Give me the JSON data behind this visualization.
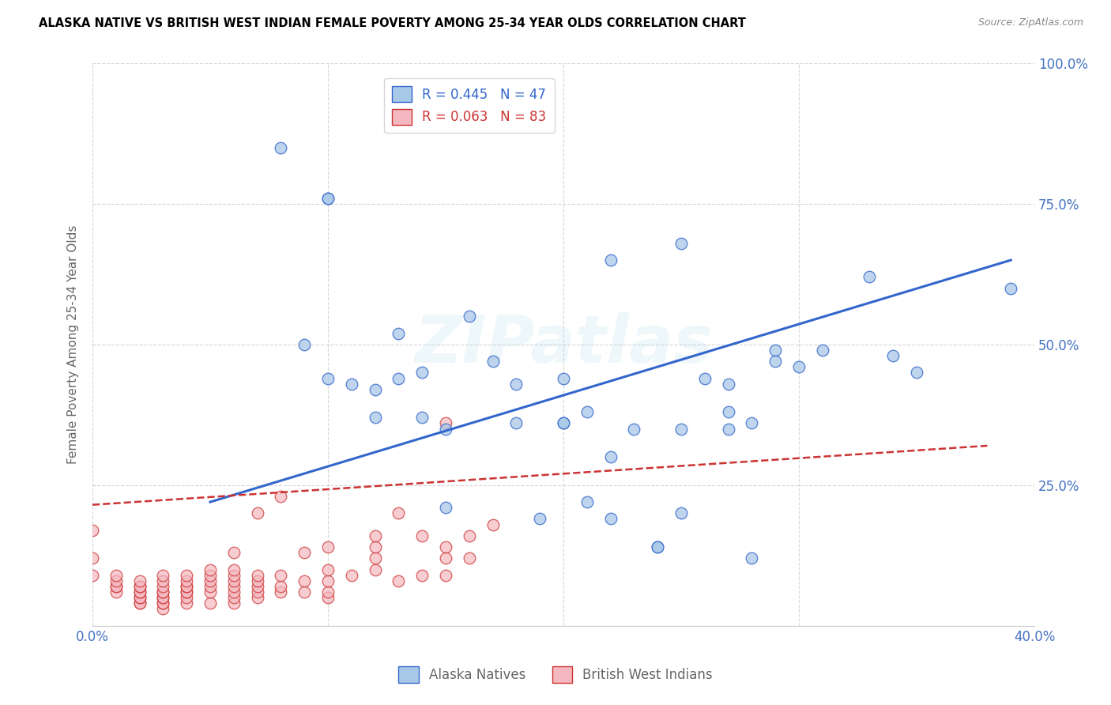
{
  "title": "ALASKA NATIVE VS BRITISH WEST INDIAN FEMALE POVERTY AMONG 25-34 YEAR OLDS CORRELATION CHART",
  "source": "Source: ZipAtlas.com",
  "ylabel": "Female Poverty Among 25-34 Year Olds",
  "xlim": [
    0.0,
    0.4
  ],
  "ylim": [
    0.0,
    1.0
  ],
  "xticks": [
    0.0,
    0.1,
    0.2,
    0.3,
    0.4
  ],
  "xticklabels": [
    "0.0%",
    "",
    "",
    "",
    "40.0%"
  ],
  "yticks": [
    0.0,
    0.25,
    0.5,
    0.75,
    1.0
  ],
  "yticklabels": [
    "",
    "25.0%",
    "50.0%",
    "75.0%",
    "100.0%"
  ],
  "alaska_R": 0.445,
  "alaska_N": 47,
  "bwi_R": 0.063,
  "bwi_N": 83,
  "alaska_color": "#a8c8e8",
  "bwi_color": "#f4b8c0",
  "alaska_line_color": "#3366cc",
  "bwi_line_color": "#cc3333",
  "tick_label_color": "#4472c4",
  "watermark": "ZIPatlas",
  "alaska_line_x0": 0.05,
  "alaska_line_y0": 0.22,
  "alaska_line_x1": 0.39,
  "alaska_line_y1": 0.65,
  "bwi_line_x0": 0.0,
  "bwi_line_y0": 0.215,
  "bwi_line_x1": 0.38,
  "bwi_line_y1": 0.32,
  "alaska_x": [
    0.08,
    0.1,
    0.1,
    0.12,
    0.12,
    0.13,
    0.14,
    0.14,
    0.15,
    0.16,
    0.17,
    0.18,
    0.19,
    0.2,
    0.2,
    0.2,
    0.21,
    0.21,
    0.22,
    0.22,
    0.22,
    0.23,
    0.24,
    0.24,
    0.25,
    0.25,
    0.25,
    0.26,
    0.27,
    0.27,
    0.27,
    0.28,
    0.29,
    0.29,
    0.3,
    0.31,
    0.33,
    0.34,
    0.35,
    0.39,
    0.09,
    0.1,
    0.11,
    0.13,
    0.15,
    0.18,
    0.28
  ],
  "alaska_y": [
    0.85,
    0.76,
    0.76,
    0.42,
    0.37,
    0.52,
    0.45,
    0.37,
    0.21,
    0.55,
    0.47,
    0.43,
    0.19,
    0.44,
    0.36,
    0.36,
    0.38,
    0.22,
    0.65,
    0.3,
    0.19,
    0.35,
    0.14,
    0.14,
    0.68,
    0.35,
    0.2,
    0.44,
    0.43,
    0.38,
    0.35,
    0.36,
    0.49,
    0.47,
    0.46,
    0.49,
    0.62,
    0.48,
    0.45,
    0.6,
    0.5,
    0.44,
    0.43,
    0.44,
    0.35,
    0.36,
    0.12
  ],
  "bwi_x": [
    0.0,
    0.0,
    0.0,
    0.01,
    0.01,
    0.01,
    0.01,
    0.01,
    0.02,
    0.02,
    0.02,
    0.02,
    0.02,
    0.02,
    0.02,
    0.02,
    0.02,
    0.03,
    0.03,
    0.03,
    0.03,
    0.03,
    0.03,
    0.03,
    0.03,
    0.03,
    0.03,
    0.04,
    0.04,
    0.04,
    0.04,
    0.04,
    0.04,
    0.04,
    0.04,
    0.05,
    0.05,
    0.05,
    0.05,
    0.05,
    0.05,
    0.06,
    0.06,
    0.06,
    0.06,
    0.06,
    0.06,
    0.06,
    0.06,
    0.07,
    0.07,
    0.07,
    0.07,
    0.07,
    0.07,
    0.08,
    0.08,
    0.08,
    0.08,
    0.09,
    0.09,
    0.09,
    0.1,
    0.1,
    0.1,
    0.1,
    0.1,
    0.11,
    0.12,
    0.12,
    0.12,
    0.12,
    0.13,
    0.13,
    0.14,
    0.14,
    0.15,
    0.15,
    0.15,
    0.15,
    0.16,
    0.16,
    0.17
  ],
  "bwi_y": [
    0.09,
    0.12,
    0.17,
    0.06,
    0.07,
    0.07,
    0.08,
    0.09,
    0.04,
    0.04,
    0.05,
    0.05,
    0.06,
    0.06,
    0.07,
    0.07,
    0.08,
    0.03,
    0.04,
    0.04,
    0.05,
    0.05,
    0.06,
    0.06,
    0.07,
    0.08,
    0.09,
    0.04,
    0.05,
    0.06,
    0.06,
    0.07,
    0.07,
    0.08,
    0.09,
    0.04,
    0.06,
    0.07,
    0.08,
    0.09,
    0.1,
    0.04,
    0.05,
    0.06,
    0.07,
    0.08,
    0.09,
    0.1,
    0.13,
    0.05,
    0.06,
    0.07,
    0.08,
    0.09,
    0.2,
    0.06,
    0.07,
    0.09,
    0.23,
    0.06,
    0.08,
    0.13,
    0.05,
    0.06,
    0.08,
    0.1,
    0.14,
    0.09,
    0.1,
    0.12,
    0.14,
    0.16,
    0.08,
    0.2,
    0.09,
    0.16,
    0.09,
    0.12,
    0.14,
    0.36,
    0.12,
    0.16,
    0.18
  ]
}
